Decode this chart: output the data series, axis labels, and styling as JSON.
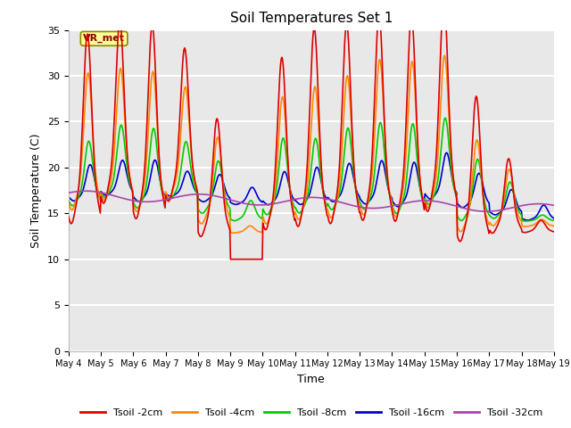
{
  "title": "Soil Temperatures Set 1",
  "xlabel": "Time",
  "ylabel": "Soil Temperature (C)",
  "ylim": [
    0,
    35
  ],
  "yticks": [
    0,
    5,
    10,
    15,
    20,
    25,
    30,
    35
  ],
  "fig_bg_color": "#ffffff",
  "plot_bg_color": "#e8e8e8",
  "annotation_label": "VR_met",
  "annotation_box_color": "#ffff99",
  "annotation_box_edge": "#888800",
  "series": {
    "Tsoil -2cm": {
      "color": "#dd0000",
      "linewidth": 1.2
    },
    "Tsoil -4cm": {
      "color": "#ff8800",
      "linewidth": 1.2
    },
    "Tsoil -8cm": {
      "color": "#00cc00",
      "linewidth": 1.2
    },
    "Tsoil -16cm": {
      "color": "#0000cc",
      "linewidth": 1.2
    },
    "Tsoil -32cm": {
      "color": "#aa44aa",
      "linewidth": 1.2
    }
  },
  "x_tick_labels": [
    "May 4",
    "May 5",
    "May 6",
    "May 7",
    "May 8",
    "May 9",
    "May 10",
    "May 11",
    "May 12",
    "May 13",
    "May 14",
    "May 15",
    "May 16",
    "May 17",
    "May 18",
    "May 19"
  ],
  "figsize": [
    6.4,
    4.8
  ],
  "dpi": 100
}
